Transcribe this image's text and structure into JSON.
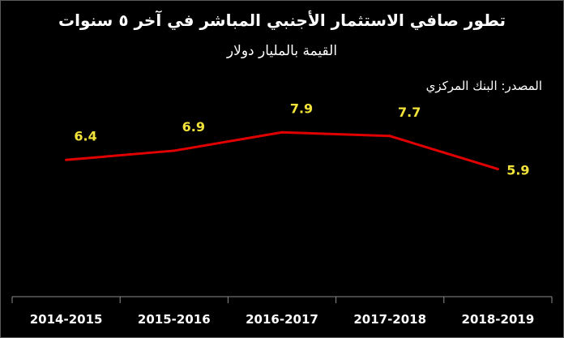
{
  "chart_data": {
    "type": "line",
    "title": "تطور صافي الاستثمار الأجنبي المباشر في آخر ٥ سنوات",
    "subtitle": "القيمة بالمليار دولار",
    "source": "المصدر: البنك المركزي",
    "categories": [
      "2014-2015",
      "2015-2016",
      "2016-2017",
      "2017-2018",
      "2018-2019"
    ],
    "series": [
      {
        "values": [
          6.4,
          6.9,
          7.9,
          7.7,
          5.9
        ]
      }
    ],
    "data_labels": [
      "6.4",
      "6.9",
      "7.9",
      "7.7",
      "5.9"
    ],
    "ylim": [
      0,
      10
    ],
    "grid": false,
    "colors": {
      "background": "#000000",
      "line": "#e00000",
      "data_label": "#f2e33a",
      "text": "#ffffff",
      "axis": "#8c8c8c"
    }
  }
}
